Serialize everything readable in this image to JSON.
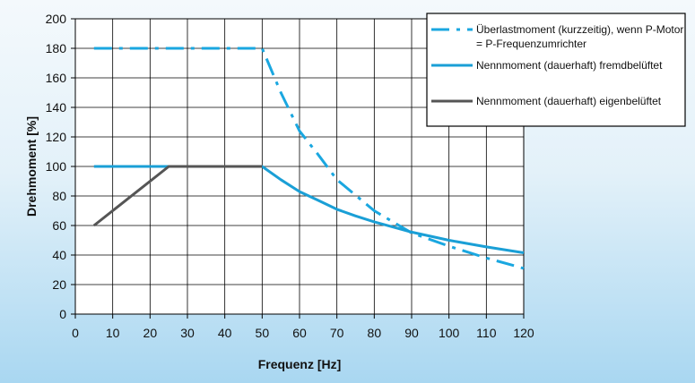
{
  "chart_data": {
    "type": "line",
    "title": "",
    "xlabel": "Frequenz [Hz]",
    "ylabel": "Drehmoment [%]",
    "xlim": [
      0,
      120
    ],
    "ylim": [
      0,
      200
    ],
    "x_ticks": [
      0,
      10,
      20,
      30,
      40,
      50,
      60,
      70,
      80,
      90,
      100,
      110,
      120
    ],
    "y_ticks": [
      0,
      20,
      40,
      60,
      80,
      100,
      120,
      140,
      160,
      180,
      200
    ],
    "grid": true,
    "legend_position": "top-right",
    "series": [
      {
        "name": "Überlastmoment (kurzzeitig), wenn P-Motor = P-Frequenzumrichter",
        "legend_lines": [
          "Überlastmoment (kurzzeitig), wenn P-Motor",
          "= P-Frequenzumrichter"
        ],
        "color": "#1aa7e0",
        "style": "dash-dot",
        "points": [
          [
            5,
            180
          ],
          [
            50,
            180
          ],
          [
            55,
            150
          ],
          [
            60,
            124
          ],
          [
            65,
            108
          ],
          [
            70,
            91
          ],
          [
            80,
            70
          ],
          [
            90,
            55
          ],
          [
            100,
            46
          ],
          [
            110,
            38
          ],
          [
            120,
            31
          ]
        ]
      },
      {
        "name": "Nennmoment (dauerhaft) fremdbelüftet",
        "legend_lines": [
          "Nennmoment (dauerhaft) fremdbelüftet"
        ],
        "color": "#1a9fd6",
        "style": "solid",
        "points": [
          [
            5,
            100
          ],
          [
            50,
            100
          ],
          [
            55,
            91
          ],
          [
            60,
            83
          ],
          [
            65,
            77
          ],
          [
            70,
            71
          ],
          [
            75,
            66.5
          ],
          [
            80,
            62.5
          ],
          [
            90,
            55.5
          ],
          [
            100,
            50
          ],
          [
            110,
            45.5
          ],
          [
            120,
            41.5
          ]
        ]
      },
      {
        "name": "Nennmoment (dauerhaft) eigenbelüftet",
        "legend_lines": [
          "Nennmoment (dauerhaft) eigenbelüftet"
        ],
        "color": "#555555",
        "style": "solid",
        "points": [
          [
            5,
            60
          ],
          [
            25,
            100
          ],
          [
            50,
            100
          ]
        ]
      }
    ]
  }
}
